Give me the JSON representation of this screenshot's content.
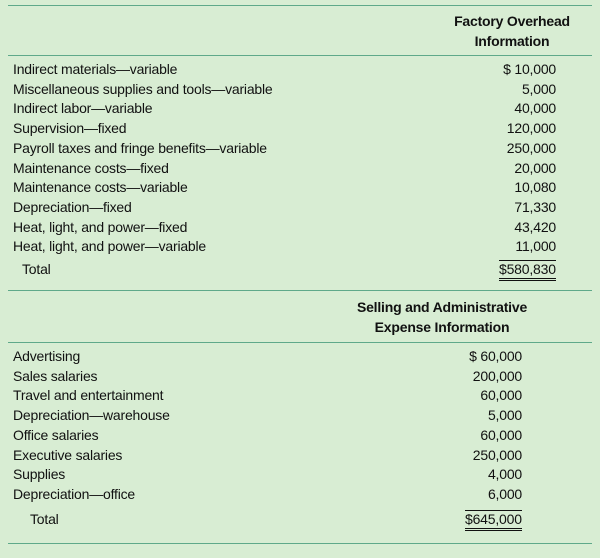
{
  "sections": [
    {
      "header": [
        "Factory Overhead",
        "Information"
      ],
      "rows": [
        [
          "Indirect materials—variable",
          "$ 10,000"
        ],
        [
          "Miscellaneous supplies and tools—variable",
          "5,000"
        ],
        [
          "Indirect labor—variable",
          "40,000"
        ],
        [
          "Supervision—fixed",
          "120,000"
        ],
        [
          "Payroll taxes and fringe benefits—variable",
          "250,000"
        ],
        [
          "Maintenance costs—fixed",
          "20,000"
        ],
        [
          "Maintenance costs—variable",
          "10,080"
        ],
        [
          "Depreciation—fixed",
          "71,330"
        ],
        [
          "Heat, light, and power—fixed",
          "43,420"
        ],
        [
          "Heat, light, and power—variable",
          "11,000"
        ]
      ],
      "total": [
        "Total",
        "$580,830"
      ]
    },
    {
      "header": [
        "Selling and Administrative",
        "Expense Information"
      ],
      "rows": [
        [
          "Advertising",
          "$ 60,000"
        ],
        [
          "Sales salaries",
          "200,000"
        ],
        [
          "Travel and entertainment",
          "60,000"
        ],
        [
          "Depreciation—warehouse",
          "5,000"
        ],
        [
          "Office salaries",
          "60,000"
        ],
        [
          "Executive salaries",
          "250,000"
        ],
        [
          "Supplies",
          "4,000"
        ],
        [
          "Depreciation—office",
          "6,000"
        ]
      ],
      "total": [
        "Total",
        "$645,000"
      ]
    }
  ]
}
